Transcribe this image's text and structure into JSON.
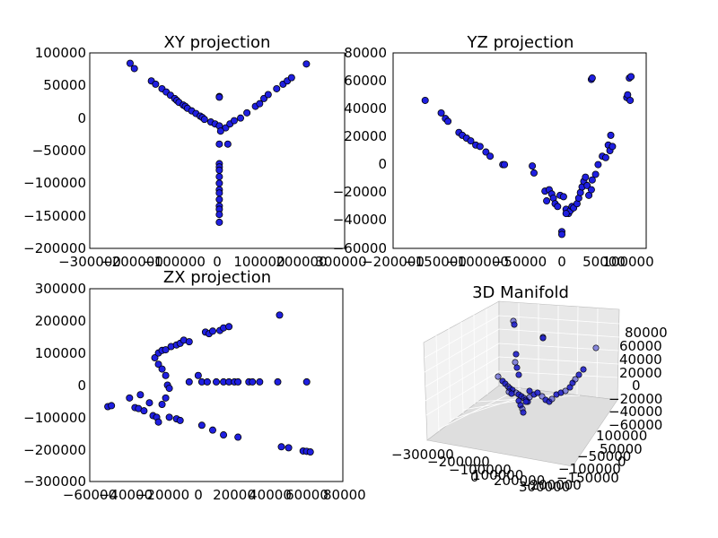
{
  "chart_data": [
    {
      "type": "scatter",
      "title": "XY projection",
      "xlim": [
        -300000,
        300000
      ],
      "ylim": [
        -200000,
        100000
      ],
      "xticks": [
        "−300000",
        "−200000",
        "−100000",
        "0",
        "100000",
        "200000",
        "300000"
      ],
      "yticks": [
        "100000",
        "50000",
        "0",
        "−50000",
        "−100000",
        "−150000",
        "−200000"
      ],
      "points": [
        [
          -205000,
          84000
        ],
        [
          -195000,
          76000
        ],
        [
          -155000,
          57000
        ],
        [
          -145000,
          52000
        ],
        [
          -130000,
          45000
        ],
        [
          -120000,
          40000
        ],
        [
          -110000,
          35000
        ],
        [
          -100000,
          30000
        ],
        [
          -95000,
          27000
        ],
        [
          -90000,
          24000
        ],
        [
          -80000,
          20000
        ],
        [
          -75000,
          18000
        ],
        [
          -70000,
          15000
        ],
        [
          -60000,
          11000
        ],
        [
          -50000,
          7000
        ],
        [
          -40000,
          3000
        ],
        [
          -35000,
          1000
        ],
        [
          -30000,
          -2000
        ],
        [
          -15000,
          -6000
        ],
        [
          -5000,
          -9000
        ],
        [
          5000,
          -12000
        ],
        [
          20000,
          -15000
        ],
        [
          30000,
          -9000
        ],
        [
          40000,
          -4000
        ],
        [
          55000,
          0
        ],
        [
          70000,
          8000
        ],
        [
          90000,
          18000
        ],
        [
          100000,
          22000
        ],
        [
          110000,
          30000
        ],
        [
          120000,
          36000
        ],
        [
          140000,
          45000
        ],
        [
          155000,
          52000
        ],
        [
          165000,
          57000
        ],
        [
          175000,
          62000
        ],
        [
          210000,
          83000
        ],
        [
          5000,
          33000
        ],
        [
          5000,
          32000
        ],
        [
          5000,
          -70000
        ],
        [
          5000,
          -75000
        ],
        [
          5000,
          -80000
        ],
        [
          5000,
          -90000
        ],
        [
          5000,
          -100000
        ],
        [
          5000,
          -110000
        ],
        [
          5000,
          -115000
        ],
        [
          5000,
          -125000
        ],
        [
          5000,
          -135000
        ],
        [
          5000,
          -140000
        ],
        [
          5000,
          -148000
        ],
        [
          5000,
          -160000
        ],
        [
          5000,
          -40000
        ],
        [
          25000,
          -40000
        ],
        [
          8000,
          -20000
        ]
      ]
    },
    {
      "type": "scatter",
      "title": "YZ projection",
      "xlim": [
        -200000,
        100000
      ],
      "ylim": [
        -60000,
        80000
      ],
      "xticks": [
        "−200000",
        "−150000",
        "−100000",
        "−50000",
        "0",
        "50000",
        "100000"
      ],
      "yticks": [
        "80000",
        "60000",
        "40000",
        "20000",
        "0",
        "−20000",
        "−40000",
        "−60000"
      ],
      "points": [
        [
          -162000,
          46000
        ],
        [
          -143000,
          37000
        ],
        [
          -138000,
          33000
        ],
        [
          -135000,
          31000
        ],
        [
          -122000,
          23000
        ],
        [
          -118000,
          21000
        ],
        [
          -113000,
          19000
        ],
        [
          -108000,
          17000
        ],
        [
          -102000,
          14000
        ],
        [
          -97000,
          13000
        ],
        [
          -90000,
          9000
        ],
        [
          -85000,
          6000
        ],
        [
          -70000,
          0
        ],
        [
          -68000,
          0
        ],
        [
          -35000,
          -1000
        ],
        [
          -33000,
          -6000
        ],
        [
          -20000,
          -19000
        ],
        [
          -15000,
          -18000
        ],
        [
          -12000,
          -21000
        ],
        [
          -10000,
          -24000
        ],
        [
          -18000,
          -26000
        ],
        [
          -8000,
          -28000
        ],
        [
          -5000,
          -30000
        ],
        [
          -2000,
          -22000
        ],
        [
          2000,
          -23000
        ],
        [
          5000,
          -32000
        ],
        [
          8000,
          -35000
        ],
        [
          10000,
          -33000
        ],
        [
          12000,
          -30000
        ],
        [
          14000,
          -31000
        ],
        [
          18000,
          -28000
        ],
        [
          20000,
          -24000
        ],
        [
          22000,
          -20000
        ],
        [
          24000,
          -16000
        ],
        [
          26000,
          -12000
        ],
        [
          28000,
          -9000
        ],
        [
          30000,
          -15000
        ],
        [
          32000,
          -22000
        ],
        [
          35000,
          -18000
        ],
        [
          36000,
          -11000
        ],
        [
          40000,
          -7000
        ],
        [
          43000,
          0
        ],
        [
          48000,
          6000
        ],
        [
          52000,
          5000
        ],
        [
          55000,
          14000
        ],
        [
          57000,
          10000
        ],
        [
          58000,
          21000
        ],
        [
          60000,
          13000
        ],
        [
          35000,
          61000
        ],
        [
          36000,
          62000
        ],
        [
          77000,
          48000
        ],
        [
          78000,
          50000
        ],
        [
          80000,
          62000
        ],
        [
          82000,
          63000
        ],
        [
          81000,
          46000
        ],
        [
          0,
          -48000
        ],
        [
          0,
          -50000
        ],
        [
          5000,
          -35000
        ]
      ]
    },
    {
      "type": "scatter",
      "title": "ZX projection",
      "xlim": [
        -60000,
        80000
      ],
      "ylim": [
        -300000,
        300000
      ],
      "xticks": [
        "−60000",
        "−40000",
        "−20000",
        "0",
        "20000",
        "40000",
        "60000",
        "80000"
      ],
      "yticks": [
        "300000",
        "200000",
        "100000",
        "0",
        "−100000",
        "−200000",
        "−300000"
      ],
      "points": [
        [
          -50000,
          -67000
        ],
        [
          -48000,
          -64000
        ],
        [
          -38000,
          -40000
        ],
        [
          -35000,
          -70000
        ],
        [
          -33000,
          -73000
        ],
        [
          -32000,
          -30000
        ],
        [
          -30000,
          -80000
        ],
        [
          -27000,
          -55000
        ],
        [
          -25000,
          -95000
        ],
        [
          -23000,
          -100000
        ],
        [
          -22000,
          -115000
        ],
        [
          -20000,
          -60000
        ],
        [
          -18000,
          -40000
        ],
        [
          -16000,
          -100000
        ],
        [
          -12000,
          -105000
        ],
        [
          -10000,
          -110000
        ],
        [
          -24000,
          85000
        ],
        [
          -22000,
          100000
        ],
        [
          -20000,
          108000
        ],
        [
          -18000,
          110000
        ],
        [
          -15000,
          120000
        ],
        [
          -12000,
          125000
        ],
        [
          -10000,
          130000
        ],
        [
          -8000,
          140000
        ],
        [
          -22000,
          65000
        ],
        [
          -20000,
          50000
        ],
        [
          -18000,
          30000
        ],
        [
          -17000,
          0
        ],
        [
          -16000,
          -10000
        ],
        [
          -5000,
          135000
        ],
        [
          0,
          30000
        ],
        [
          -5000,
          10000
        ],
        [
          2000,
          10000
        ],
        [
          4000,
          165000
        ],
        [
          6000,
          160000
        ],
        [
          8000,
          168000
        ],
        [
          12000,
          170000
        ],
        [
          14000,
          178000
        ],
        [
          17000,
          182000
        ],
        [
          5000,
          10000
        ],
        [
          10000,
          10000
        ],
        [
          14000,
          10000
        ],
        [
          17000,
          10000
        ],
        [
          20000,
          10000
        ],
        [
          22000,
          10000
        ],
        [
          28000,
          10000
        ],
        [
          30000,
          10000
        ],
        [
          34000,
          10000
        ],
        [
          44000,
          10000
        ],
        [
          60000,
          10000
        ],
        [
          2000,
          -125000
        ],
        [
          8000,
          -140000
        ],
        [
          14000,
          -155000
        ],
        [
          22000,
          -162000
        ],
        [
          45000,
          218000
        ],
        [
          46000,
          -192000
        ],
        [
          50000,
          -195000
        ],
        [
          58000,
          -205000
        ],
        [
          60000,
          -206000
        ],
        [
          62000,
          -208000
        ]
      ]
    },
    {
      "type": "scatter3d",
      "title": "3D Manifold",
      "zticks": [
        "80000",
        "60000",
        "40000",
        "20000",
        "0",
        "−20000",
        "−40000",
        "−60000"
      ],
      "yticks": [
        "100000",
        "50000",
        "0",
        "−50000",
        "−100000",
        "−150000",
        "−200000"
      ],
      "xticks": [
        "−300000",
        "−200000",
        "−100000",
        "0",
        "100000",
        "200000",
        "300000"
      ],
      "points": [
        [
          572,
          358
        ],
        [
          573,
          362
        ],
        [
          575,
          395
        ],
        [
          574,
          404
        ],
        [
          576,
          410
        ],
        [
          578,
          418
        ],
        [
          555,
          420
        ],
        [
          560,
          425
        ],
        [
          563,
          428
        ],
        [
          566,
          431
        ],
        [
          568,
          433
        ],
        [
          571,
          435
        ],
        [
          575,
          438
        ],
        [
          578,
          440
        ],
        [
          581,
          442
        ],
        [
          584,
          444
        ],
        [
          586,
          446
        ],
        [
          588,
          448
        ],
        [
          590,
          443
        ],
        [
          595,
          440
        ],
        [
          599,
          438
        ],
        [
          604,
          442
        ],
        [
          608,
          446
        ],
        [
          612,
          448
        ],
        [
          615,
          445
        ],
        [
          620,
          440
        ],
        [
          625,
          438
        ],
        [
          630,
          436
        ],
        [
          635,
          432
        ],
        [
          638,
          427
        ],
        [
          641,
          423
        ],
        [
          645,
          418
        ],
        [
          650,
          412
        ],
        [
          664,
          388
        ],
        [
          578,
          447
        ],
        [
          580,
          452
        ],
        [
          582,
          456
        ],
        [
          583,
          460
        ],
        [
          586,
          448
        ],
        [
          605,
          376
        ],
        [
          605,
          377
        ],
        [
          590,
          436
        ],
        [
          567,
          437
        ],
        [
          570,
          439
        ]
      ]
    }
  ]
}
